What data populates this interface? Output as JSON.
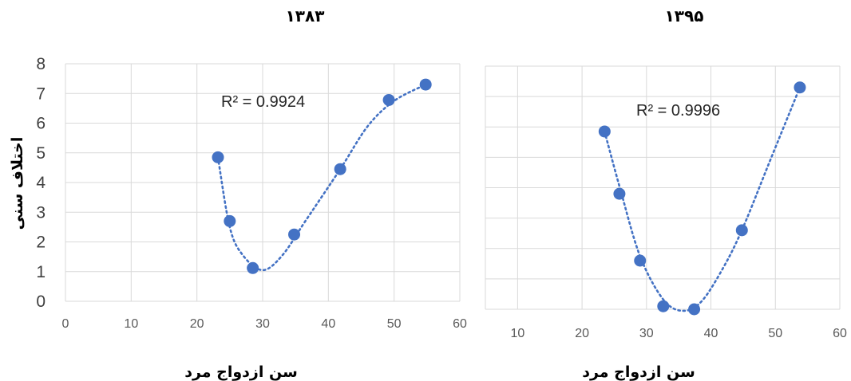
{
  "chart_data": [
    {
      "type": "scatter",
      "title": "۱۳۸۳",
      "xlabel": "سن ازدواج مرد",
      "ylabel": "اختلاف سنی",
      "xlim": [
        0,
        60
      ],
      "ylim": [
        0,
        8
      ],
      "xticks": [
        "0",
        "10",
        "20",
        "30",
        "40",
        "50",
        "60"
      ],
      "yticks": [
        "0",
        "1",
        "2",
        "3",
        "4",
        "5",
        "6",
        "7",
        "8"
      ],
      "grid": true,
      "trendline": "polynomial (dotted)",
      "r_squared_label": "R² = 0.9924",
      "x": [
        23.2,
        25.0,
        28.5,
        34.8,
        41.8,
        49.2,
        54.8
      ],
      "y": [
        4.85,
        2.7,
        1.12,
        2.25,
        4.45,
        6.78,
        7.3
      ],
      "color": "#4472c4"
    },
    {
      "type": "scatter",
      "title": "۱۳۹۵",
      "xlabel": "سن ازدواج مرد",
      "xlim": [
        5,
        60
      ],
      "ylim": [
        0,
        8
      ],
      "xticks": [
        "10",
        "20",
        "30",
        "40",
        "50",
        "60"
      ],
      "grid": true,
      "trendline": "polynomial (dotted)",
      "r_squared_label": "R² = 0.9996",
      "x": [
        23.5,
        25.8,
        29.0,
        32.6,
        37.4,
        44.8,
        53.8
      ],
      "y": [
        5.85,
        3.8,
        1.6,
        0.1,
        0.0,
        2.6,
        7.3
      ],
      "color": "#4472c4"
    }
  ]
}
